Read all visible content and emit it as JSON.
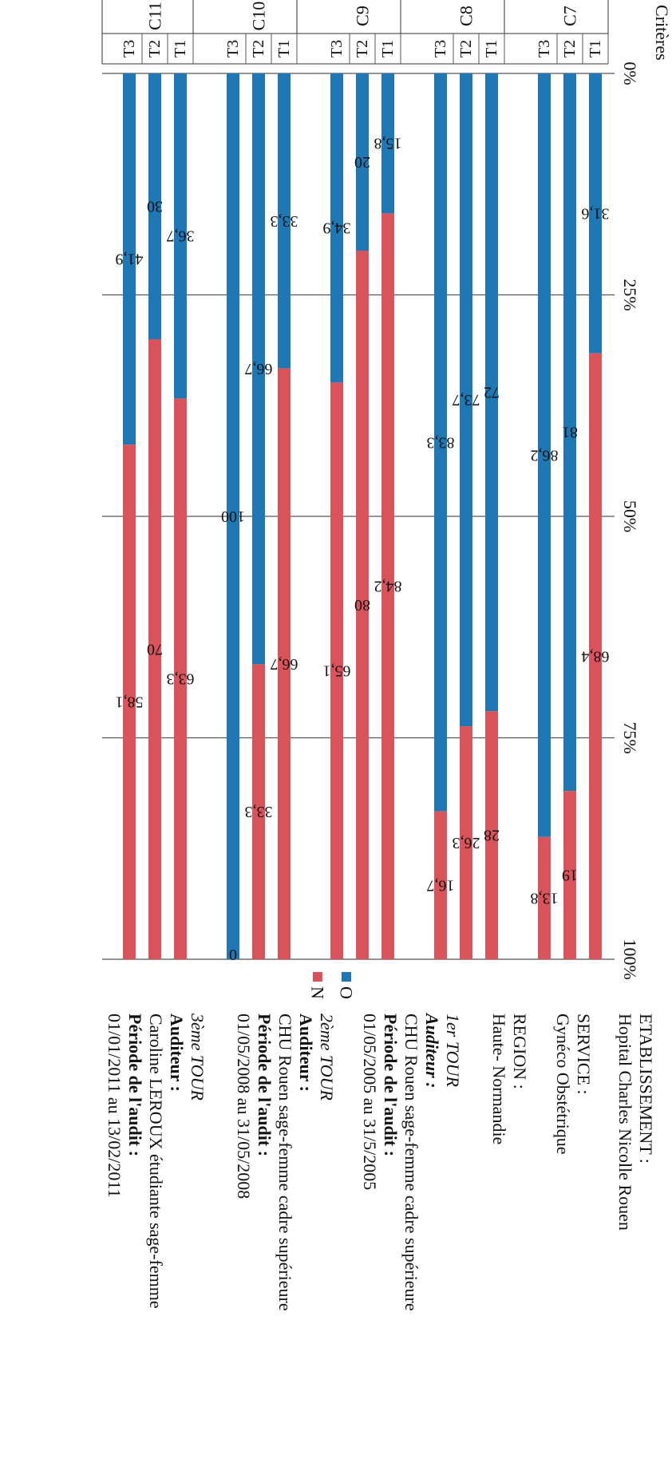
{
  "chart_data": {
    "type": "bar",
    "stacked": true,
    "normalized": true,
    "axis_title": "Critères",
    "xticks": [
      "0%",
      "25%",
      "50%",
      "75%",
      "100%"
    ],
    "xlim": [
      0,
      100
    ],
    "grid": true,
    "legend_position": "right",
    "groups": [
      {
        "name": "C7",
        "rows": [
          {
            "label": "T1",
            "oui": 31.6,
            "non": 68.4
          },
          {
            "label": "T2",
            "oui": 81,
            "non": 19
          },
          {
            "label": "T3",
            "oui": 86.2,
            "non": 13.8
          }
        ]
      },
      {
        "name": "C8",
        "rows": [
          {
            "label": "T1",
            "oui": 72,
            "non": 28
          },
          {
            "label": "T2",
            "oui": 73.7,
            "non": 26.3
          },
          {
            "label": "T3",
            "oui": 83.3,
            "non": 16.7
          }
        ]
      },
      {
        "name": "C9",
        "rows": [
          {
            "label": "T1",
            "oui": 15.8,
            "non": 84.2
          },
          {
            "label": "T2",
            "oui": 20,
            "non": 80
          },
          {
            "label": "T3",
            "oui": 34.9,
            "non": 65.1
          }
        ]
      },
      {
        "name": "C10",
        "rows": [
          {
            "label": "T1",
            "oui": 33.3,
            "non": 66.7
          },
          {
            "label": "T2",
            "oui": 66.7,
            "non": 33.3
          },
          {
            "label": "T3",
            "oui": 100,
            "non": 0
          }
        ]
      },
      {
        "name": "C11",
        "rows": [
          {
            "label": "T1",
            "oui": 36.7,
            "non": 63.3
          },
          {
            "label": "T2",
            "oui": 30,
            "non": 70
          },
          {
            "label": "T3",
            "oui": 41.9,
            "non": 58.1
          }
        ]
      }
    ],
    "series": [
      {
        "name": "OUI",
        "color": "#1f77b4"
      },
      {
        "name": "NON",
        "color": "#d9545a"
      }
    ]
  },
  "info": {
    "etab_label": "ETABLISSEMENT :",
    "etab_value": "Hopital Charles Nicolle Rouen",
    "service_label": "SERVICE :",
    "service_value": "Gynéco Obstétrique",
    "region_label": "REGION :",
    "region_value": "Haute- Normandie",
    "tours": [
      {
        "title": "1er TOUR",
        "auditeur_label": "Auditeur :",
        "auditeur": "CHU Rouen sage-femme cadre supérieure",
        "periode_label": "Période de l'audit :",
        "periode": "01/05/2005 au 31/5/2005"
      },
      {
        "title": "2ème TOUR",
        "auditeur_label": "Auditeur :",
        "auditeur": "CHU Rouen sage-femme cadre supérieure",
        "periode_label": "Période de l'audit :",
        "periode": "01/05/2008 au 31/05/2008"
      },
      {
        "title": "3ème TOUR",
        "auditeur_label": "Auditeur :",
        "auditeur": "Caroline LEROUX étudiante sage-femme",
        "periode_label": "Période de l'audit :",
        "periode": "01/01/2011 au 13/02/2011"
      }
    ]
  }
}
